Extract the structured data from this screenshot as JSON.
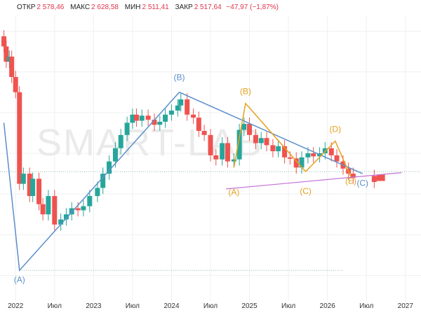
{
  "header": {
    "open_label": "ОТКР",
    "open_value": "2 578,46",
    "high_label": "МАКС",
    "high_value": "2 628,58",
    "low_label": "МИН",
    "low_value": "2 511,41",
    "close_label": "ЗАКР",
    "close_value": "2 517,64",
    "change": "−47,97 (−1,87%)"
  },
  "watermark": "SMART-LAB",
  "chart_data": {
    "type": "candlestick",
    "x_ticks": [
      "2022",
      "Июл",
      "2023",
      "Июл",
      "2024",
      "Июл",
      "2025",
      "Июл",
      "2026",
      "Июл",
      "2027"
    ],
    "grid": true,
    "colors": {
      "up": "#26a69a",
      "down": "#ef5350",
      "blue_wave": "#5b8fcb",
      "orange_wave": "#e5a21e",
      "support": "#c470d8"
    },
    "wave_labels": {
      "blue": [
        "(A)",
        "(B)",
        "(C)"
      ],
      "orange": [
        "(A)",
        "(B)",
        "(C)",
        "(D)",
        "(E)"
      ]
    },
    "candles_weekly_approx": [
      {
        "t": 2021.85,
        "o": 3950,
        "c": 3850
      },
      {
        "t": 2021.88,
        "o": 3850,
        "c": 3700
      },
      {
        "t": 2021.92,
        "o": 3700,
        "c": 3750
      },
      {
        "t": 2021.95,
        "o": 3750,
        "c": 3550
      },
      {
        "t": 2022.0,
        "o": 3550,
        "c": 3400
      },
      {
        "t": 2022.05,
        "o": 3400,
        "c": 2500
      },
      {
        "t": 2022.1,
        "o": 2500,
        "c": 2600
      },
      {
        "t": 2022.18,
        "o": 2600,
        "c": 2380
      },
      {
        "t": 2022.22,
        "o": 2380,
        "c": 2550
      },
      {
        "t": 2022.3,
        "o": 2550,
        "c": 2300
      },
      {
        "t": 2022.35,
        "o": 2300,
        "c": 2200
      },
      {
        "t": 2022.42,
        "o": 2200,
        "c": 2380
      },
      {
        "t": 2022.5,
        "o": 2380,
        "c": 2100
      },
      {
        "t": 2022.58,
        "o": 2100,
        "c": 2150
      },
      {
        "t": 2022.65,
        "o": 2150,
        "c": 2200
      },
      {
        "t": 2022.72,
        "o": 2200,
        "c": 2260
      },
      {
        "t": 2022.8,
        "o": 2260,
        "c": 2240
      },
      {
        "t": 2022.87,
        "o": 2240,
        "c": 2280
      },
      {
        "t": 2022.95,
        "o": 2280,
        "c": 2380
      },
      {
        "t": 2023.05,
        "o": 2380,
        "c": 2460
      },
      {
        "t": 2023.12,
        "o": 2460,
        "c": 2600
      },
      {
        "t": 2023.2,
        "o": 2600,
        "c": 2720
      },
      {
        "t": 2023.28,
        "o": 2720,
        "c": 2850
      },
      {
        "t": 2023.35,
        "o": 2850,
        "c": 2980
      },
      {
        "t": 2023.43,
        "o": 2980,
        "c": 3100
      },
      {
        "t": 2023.5,
        "o": 3100,
        "c": 3180
      },
      {
        "t": 2023.55,
        "o": 3180,
        "c": 3120
      },
      {
        "t": 2023.62,
        "o": 3120,
        "c": 3170
      },
      {
        "t": 2023.7,
        "o": 3170,
        "c": 3130
      },
      {
        "t": 2023.78,
        "o": 3130,
        "c": 3080
      },
      {
        "t": 2023.85,
        "o": 3080,
        "c": 3110
      },
      {
        "t": 2023.92,
        "o": 3110,
        "c": 3180
      },
      {
        "t": 2024.0,
        "o": 3180,
        "c": 3220
      },
      {
        "t": 2024.08,
        "o": 3220,
        "c": 3270
      },
      {
        "t": 2024.12,
        "o": 3270,
        "c": 3330
      },
      {
        "t": 2024.2,
        "o": 3330,
        "c": 3180
      },
      {
        "t": 2024.28,
        "o": 3180,
        "c": 3150
      },
      {
        "t": 2024.35,
        "o": 3150,
        "c": 3020
      },
      {
        "t": 2024.42,
        "o": 3020,
        "c": 2980
      },
      {
        "t": 2024.5,
        "o": 2980,
        "c": 2780
      },
      {
        "t": 2024.57,
        "o": 2780,
        "c": 2740
      },
      {
        "t": 2024.65,
        "o": 2740,
        "c": 2900
      },
      {
        "t": 2024.72,
        "o": 2900,
        "c": 2720
      },
      {
        "t": 2024.8,
        "o": 2720,
        "c": 2740
      },
      {
        "t": 2024.87,
        "o": 2740,
        "c": 3030
      },
      {
        "t": 2024.93,
        "o": 3030,
        "c": 3090
      },
      {
        "t": 2025.0,
        "o": 3090,
        "c": 2980
      },
      {
        "t": 2025.08,
        "o": 2980,
        "c": 2900
      },
      {
        "t": 2025.15,
        "o": 2900,
        "c": 2950
      },
      {
        "t": 2025.22,
        "o": 2950,
        "c": 2880
      },
      {
        "t": 2025.3,
        "o": 2880,
        "c": 2820
      },
      {
        "t": 2025.37,
        "o": 2820,
        "c": 2870
      },
      {
        "t": 2025.45,
        "o": 2870,
        "c": 2760
      },
      {
        "t": 2025.52,
        "o": 2760,
        "c": 2750
      },
      {
        "t": 2025.6,
        "o": 2750,
        "c": 2660
      },
      {
        "t": 2025.67,
        "o": 2660,
        "c": 2760
      },
      {
        "t": 2025.75,
        "o": 2760,
        "c": 2800
      },
      {
        "t": 2025.82,
        "o": 2800,
        "c": 2770
      },
      {
        "t": 2025.9,
        "o": 2770,
        "c": 2800
      },
      {
        "t": 2025.97,
        "o": 2800,
        "c": 2850
      },
      {
        "t": 2026.05,
        "o": 2850,
        "c": 2780
      },
      {
        "t": 2026.12,
        "o": 2780,
        "c": 2720
      },
      {
        "t": 2026.2,
        "o": 2720,
        "c": 2650
      },
      {
        "t": 2026.27,
        "o": 2650,
        "c": 2600
      },
      {
        "t": 2026.33,
        "o": 2600,
        "c": 2560
      },
      {
        "t": 2026.6,
        "o": 2578,
        "c": 2518
      }
    ],
    "blue_wave_points": [
      {
        "t": 2021.85,
        "v": 3100
      },
      {
        "t": 2022.05,
        "v": 1650
      },
      {
        "t": 2024.1,
        "v": 3400
      },
      {
        "t": 2026.45,
        "v": 2600
      }
    ],
    "orange_wave_points": [
      {
        "t": 2024.8,
        "v": 2660
      },
      {
        "t": 2024.95,
        "v": 3290
      },
      {
        "t": 2025.72,
        "v": 2620
      },
      {
        "t": 2026.1,
        "v": 2920
      },
      {
        "t": 2026.3,
        "v": 2570
      }
    ],
    "support_line": [
      {
        "t": 2024.7,
        "v": 2450
      },
      {
        "t": 2026.95,
        "v": 2610
      }
    ],
    "dotted_levels": [
      2620,
      1650
    ],
    "last_candle_marker": true
  }
}
